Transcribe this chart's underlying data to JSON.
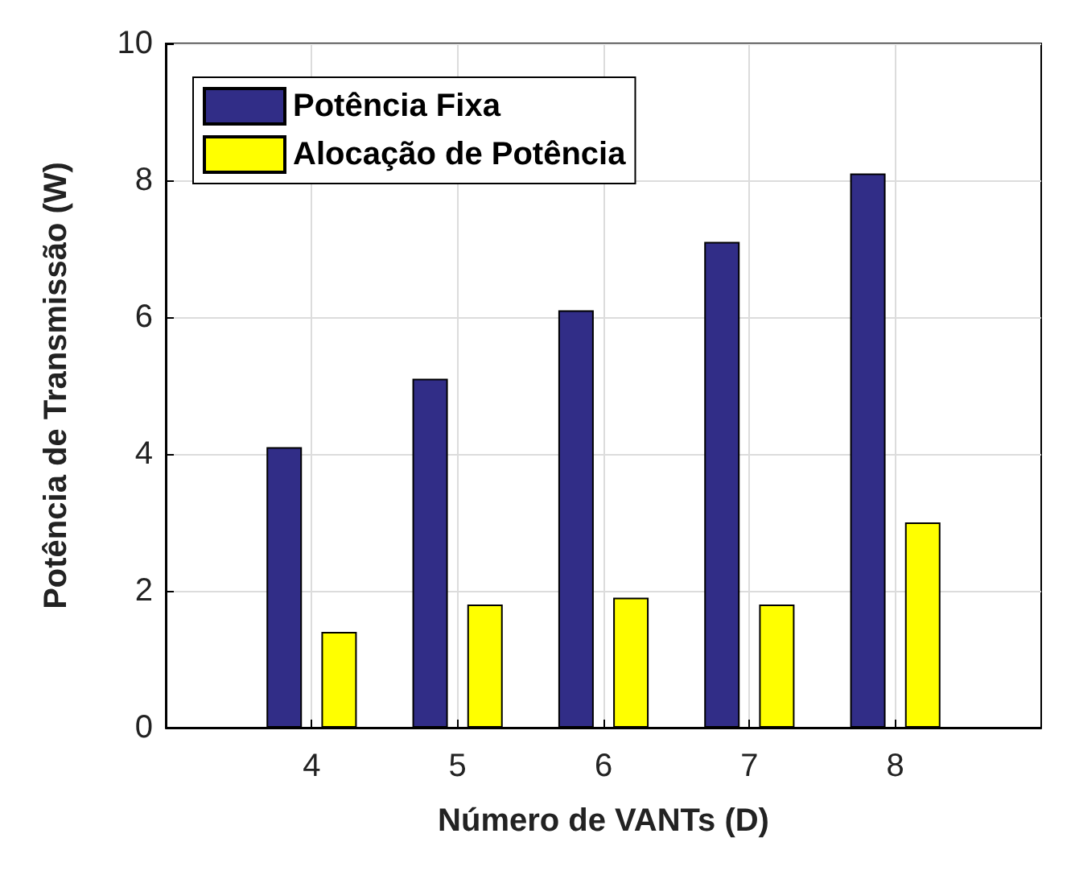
{
  "chart_data": {
    "type": "bar",
    "xlabel": "Número de VANTs (D)",
    "ylabel": "Potência de Transmissão (W)",
    "x": [
      4,
      5,
      6,
      7,
      8
    ],
    "xlim": [
      3,
      9
    ],
    "xticks": [
      4,
      5,
      6,
      7,
      8
    ],
    "ylim": [
      0,
      10
    ],
    "yticks": [
      0,
      2,
      4,
      6,
      8,
      10
    ],
    "series": [
      {
        "name": "Potência Fixa",
        "color": "#312d87",
        "values": [
          4.1,
          5.1,
          6.1,
          7.1,
          8.1
        ]
      },
      {
        "name": "Alocação de Potência",
        "color": "#ffff00",
        "values": [
          1.4,
          1.8,
          1.9,
          1.8,
          3.0
        ]
      }
    ],
    "grid": true,
    "legend": "top left"
  }
}
